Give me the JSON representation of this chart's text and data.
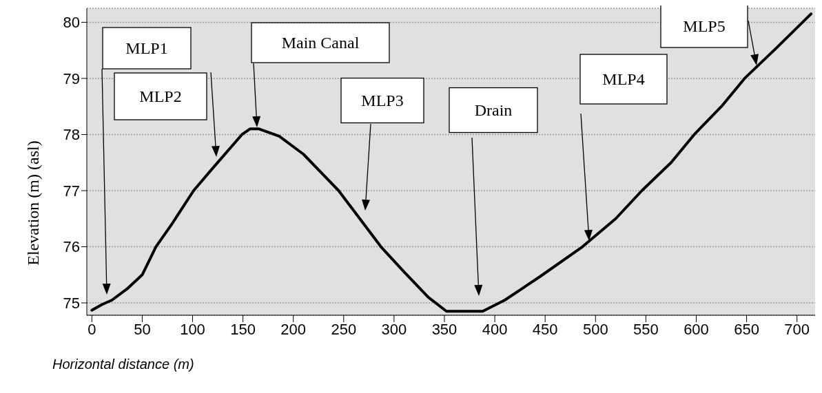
{
  "chart_data": {
    "type": "line",
    "xlabel": "Horizontal distance (m)",
    "ylabel": "Elevation (m) (asl)",
    "x": [
      0,
      10,
      20,
      35,
      50,
      63.6,
      80,
      101,
      120,
      149,
      157,
      166,
      186,
      210,
      245,
      287,
      310,
      334,
      352,
      388,
      410,
      445,
      487,
      520,
      546,
      575,
      598,
      625,
      648,
      680,
      714
    ],
    "values": [
      74.87,
      74.97,
      75.05,
      75.25,
      75.5,
      76,
      76.42,
      77,
      77.4,
      78,
      78.1,
      78.1,
      77.97,
      77.65,
      77,
      76,
      75.55,
      75.1,
      74.85,
      74.85,
      75.05,
      75.47,
      76,
      76.5,
      77,
      77.5,
      78,
      78.5,
      79,
      79.55,
      80.15
    ],
    "color": "#000000",
    "xlim": [
      -5,
      718
    ],
    "xticks": [
      0,
      50,
      100,
      150,
      200,
      250,
      300,
      350,
      400,
      450,
      500,
      550,
      600,
      650,
      700
    ],
    "ylim": [
      74.78,
      80.25
    ],
    "yticks": [
      75,
      76,
      77,
      78,
      79,
      80
    ],
    "grid": "y",
    "marker": "none",
    "line_style": "solid",
    "legend": false,
    "annotations": [
      "MLP1",
      "MLP2",
      "Main Canal",
      "MLP3",
      "Drain",
      "MLP4",
      "MLP5"
    ]
  }
}
